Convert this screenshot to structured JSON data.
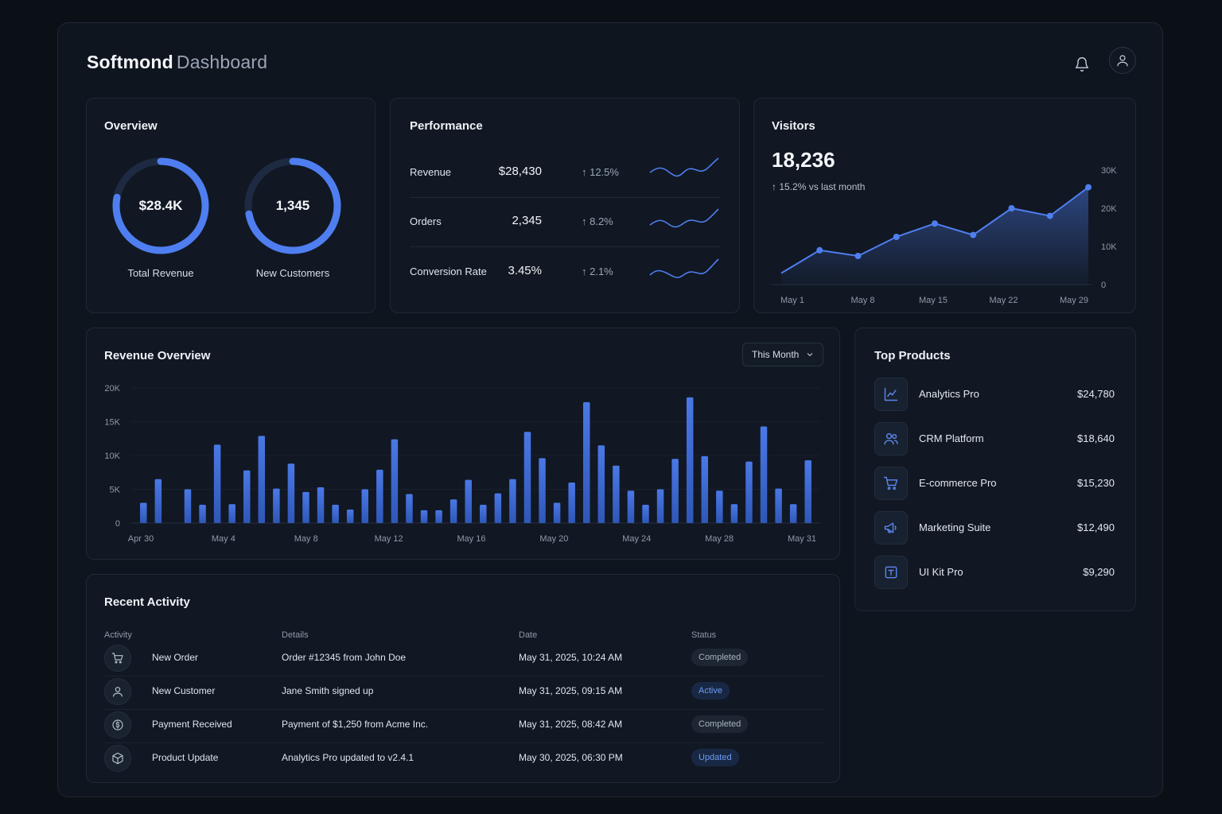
{
  "header": {
    "brand": "Softmond",
    "section": "Dashboard"
  },
  "overview": {
    "title": "Overview",
    "rings": [
      {
        "value": "$28.4K",
        "label": "Total Revenue",
        "fraction": 0.78
      },
      {
        "value": "1,345",
        "label": "New Customers",
        "fraction": 0.72
      }
    ]
  },
  "performance": {
    "title": "Performance",
    "rows": [
      {
        "label": "Revenue",
        "value": "$28,430",
        "change": "↑ 12.5%"
      },
      {
        "label": "Orders",
        "value": "2,345",
        "change": "↑ 8.2%"
      },
      {
        "label": "Conversion Rate",
        "value": "3.45%",
        "change": "↑ 2.1%"
      }
    ]
  },
  "visitors": {
    "title": "Visitors",
    "total": "18,236",
    "change": "↑ 15.2%  vs last month",
    "chart_data": {
      "type": "area",
      "x": [
        "May 1",
        "May 4",
        "May 8",
        "May 12",
        "May 15",
        "May 18",
        "May 22",
        "May 25",
        "May 29"
      ],
      "values": [
        3000,
        9000,
        7500,
        12500,
        16000,
        13000,
        20000,
        18000,
        25500
      ],
      "xticks": [
        "May 1",
        "May 8",
        "May 15",
        "May 22",
        "May 29"
      ],
      "yticks": [
        "0",
        "10K",
        "20K",
        "30K"
      ],
      "ylim": [
        0,
        30000
      ]
    }
  },
  "revenue_overview": {
    "title": "Revenue Overview",
    "period": "This Month",
    "chart_data": {
      "type": "bar",
      "ylim": [
        0,
        20000
      ],
      "yticks": [
        "0",
        "5K",
        "10K",
        "15K",
        "20K"
      ],
      "xticks": [
        "Apr 30",
        "May 4",
        "May 8",
        "May 12",
        "May 16",
        "May 20",
        "May 24",
        "May 28",
        "May 31"
      ],
      "values": [
        3000,
        6500,
        0,
        5000,
        2700,
        11600,
        2800,
        7800,
        12900,
        5100,
        8800,
        4600,
        5300,
        2700,
        2000,
        5000,
        7900,
        12400,
        4300,
        1900,
        1900,
        3500,
        6400,
        2700,
        4400,
        6500,
        13500,
        9600,
        3000,
        6000,
        17900,
        11500,
        8500,
        4800,
        2700,
        5000,
        9500,
        18600,
        9900,
        4800,
        2800,
        9100,
        14300,
        5100,
        2800,
        9300
      ]
    }
  },
  "top_products": {
    "title": "Top Products",
    "items": [
      {
        "name": "Analytics Pro",
        "value": "$24,780",
        "icon": "chart-icon"
      },
      {
        "name": "CRM Platform",
        "value": "$18,640",
        "icon": "users-icon"
      },
      {
        "name": "E-commerce Pro",
        "value": "$15,230",
        "icon": "cart-icon"
      },
      {
        "name": "Marketing Suite",
        "value": "$12,490",
        "icon": "megaphone-icon"
      },
      {
        "name": "UI Kit Pro",
        "value": "$9,290",
        "icon": "text-box-icon"
      }
    ]
  },
  "recent_activity": {
    "title": "Recent Activity",
    "columns": [
      "Activity",
      "Details",
      "Date",
      "Status"
    ],
    "rows": [
      {
        "activity": "New Order",
        "details": "Order #12345 from John Doe",
        "date": "May 31, 2025, 10:24 AM",
        "status": "Completed",
        "icon": "cart-icon"
      },
      {
        "activity": "New Customer",
        "details": "Jane Smith signed up",
        "date": "May 31, 2025, 09:15 AM",
        "status": "Active",
        "icon": "user-icon"
      },
      {
        "activity": "Payment Received",
        "details": "Payment of $1,250 from Acme Inc.",
        "date": "May 31, 2025, 08:42 AM",
        "status": "Completed",
        "icon": "dollar-icon"
      },
      {
        "activity": "Product Update",
        "details": "Analytics Pro updated to v2.4.1",
        "date": "May 30, 2025, 06:30 PM",
        "status": "Updated",
        "icon": "box-icon"
      }
    ]
  },
  "colors": {
    "accent": "#4f7ef0",
    "background": "#0b1017",
    "card": "#111823"
  }
}
